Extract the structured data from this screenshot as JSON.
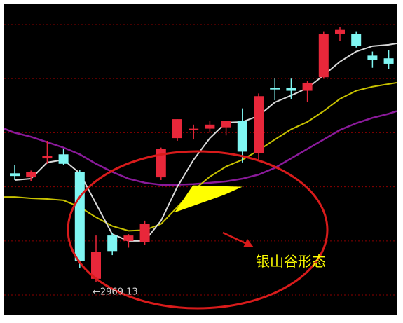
{
  "chart_data": {
    "type": "candlestick",
    "title": "",
    "xlabel": "",
    "ylabel": "",
    "grid": true,
    "colors": {
      "background": "#000000",
      "grid": "#8b0000",
      "up_candle": "#e8273a",
      "down_candle": "#7ff6f2",
      "ma_short": "#d9d9d9",
      "ma_mid": "#c8c200",
      "ma_long": "#8a1a9a",
      "highlight": "#ffff00",
      "circle": "#d81b1b",
      "arrow": "#d81b1b",
      "annotation_text": "#ffff00",
      "low_label_text": "#cfcfcf"
    },
    "ylim": [
      2920,
      3380
    ],
    "grid_levels": [
      3350,
      3270,
      3190,
      3110,
      3030,
      2950
    ],
    "candles": [
      {
        "o": 3130,
        "h": 3142,
        "l": 3120,
        "c": 3126
      },
      {
        "o": 3124,
        "h": 3134,
        "l": 3118,
        "c": 3132
      },
      {
        "o": 3152,
        "h": 3178,
        "l": 3144,
        "c": 3156
      },
      {
        "o": 3158,
        "h": 3166,
        "l": 3142,
        "c": 3144
      },
      {
        "o": 3132,
        "h": 3135,
        "l": 2990,
        "c": 3000
      },
      {
        "o": 2974,
        "h": 3038,
        "l": 2969.13,
        "c": 3014
      },
      {
        "o": 3038,
        "h": 3042,
        "l": 3009,
        "c": 3015
      },
      {
        "o": 3030,
        "h": 3040,
        "l": 3020,
        "c": 3038
      },
      {
        "o": 3028,
        "h": 3060,
        "l": 3024,
        "c": 3055
      },
      {
        "o": 3124,
        "h": 3168,
        "l": 3120,
        "c": 3166
      },
      {
        "o": 3182,
        "h": 3210,
        "l": 3178,
        "c": 3210
      },
      {
        "o": 3196,
        "h": 3202,
        "l": 3180,
        "c": 3196
      },
      {
        "o": 3196,
        "h": 3208,
        "l": 3190,
        "c": 3202
      },
      {
        "o": 3198,
        "h": 3208,
        "l": 3186,
        "c": 3207
      },
      {
        "o": 3208,
        "h": 3226,
        "l": 3146,
        "c": 3162
      },
      {
        "o": 3160,
        "h": 3248,
        "l": 3150,
        "c": 3244
      },
      {
        "o": 3256,
        "h": 3270,
        "l": 3238,
        "c": 3254
      },
      {
        "o": 3256,
        "h": 3270,
        "l": 3240,
        "c": 3252
      },
      {
        "o": 3252,
        "h": 3266,
        "l": 3236,
        "c": 3264
      },
      {
        "o": 3272,
        "h": 3340,
        "l": 3270,
        "c": 3336
      },
      {
        "o": 3336,
        "h": 3346,
        "l": 3326,
        "c": 3342
      },
      {
        "o": 3336,
        "h": 3340,
        "l": 3316,
        "c": 3318
      },
      {
        "o": 3304,
        "h": 3310,
        "l": 3286,
        "c": 3298
      },
      {
        "o": 3300,
        "h": 3312,
        "l": 3284,
        "c": 3292
      }
    ],
    "ma_short": [
      3120,
      3122,
      3146,
      3150,
      3130,
      3085,
      3040,
      3030,
      3030,
      3060,
      3110,
      3150,
      3182,
      3205,
      3206,
      3215,
      3235,
      3245,
      3256,
      3275,
      3295,
      3310,
      3318,
      3320
    ],
    "ma_mid": [
      3095,
      3093,
      3092,
      3090,
      3080,
      3065,
      3052,
      3045,
      3046,
      3055,
      3080,
      3105,
      3125,
      3140,
      3150,
      3164,
      3180,
      3195,
      3206,
      3222,
      3240,
      3252,
      3258,
      3262
    ],
    "ma_long": [
      3190,
      3184,
      3176,
      3168,
      3158,
      3144,
      3132,
      3122,
      3116,
      3113,
      3113,
      3114,
      3116,
      3118,
      3122,
      3128,
      3138,
      3152,
      3166,
      3180,
      3194,
      3204,
      3212,
      3218
    ],
    "annotations": {
      "pattern_label": "银山谷形态",
      "low_label": "←2969.13"
    }
  }
}
